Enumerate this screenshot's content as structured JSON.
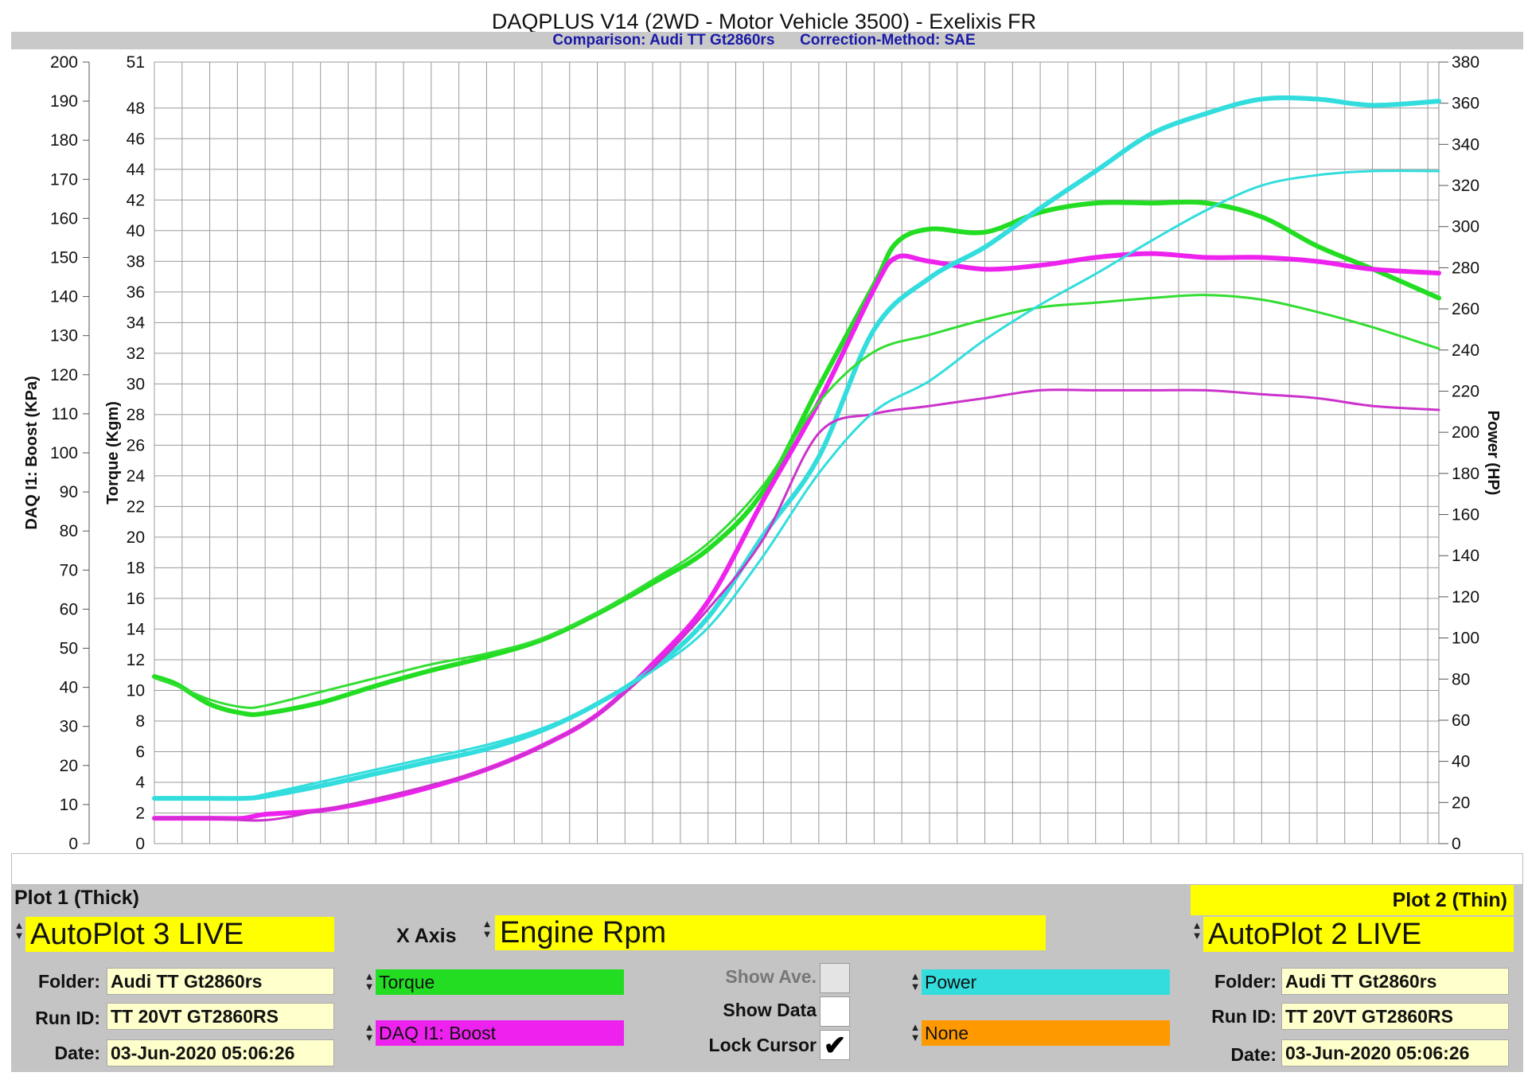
{
  "chart_data": {
    "type": "line",
    "title": "DAQPLUS V14 (2WD - Motor Vehicle 3500) - Exelixis FR",
    "subtitle": "Comparison: Audi TT Gt2860rs      Correction-Method: SAE",
    "xlim": [
      1500,
      7300
    ],
    "x_ticks": [
      1500,
      1750,
      2000,
      2250,
      2500,
      2750,
      3000,
      3250,
      3500,
      3750,
      4000,
      4250,
      4500,
      4750,
      5000,
      5250,
      5500,
      5750,
      6000,
      6250,
      6500,
      6750,
      7000,
      7300
    ],
    "y_axes": {
      "boost": {
        "label": "DAQ I1: Boost (KPa)",
        "range": [
          0,
          200
        ],
        "ticks": [
          0,
          10,
          20,
          30,
          40,
          50,
          60,
          70,
          80,
          90,
          100,
          110,
          120,
          130,
          140,
          150,
          160,
          170,
          180,
          190,
          200
        ]
      },
      "torque": {
        "label": "Torque (Kgm)",
        "range": [
          0,
          51
        ],
        "ticks": [
          0,
          2,
          4,
          6,
          8,
          10,
          12,
          14,
          16,
          18,
          20,
          22,
          24,
          26,
          28,
          30,
          32,
          34,
          36,
          38,
          40,
          42,
          44,
          46,
          48,
          51
        ]
      },
      "power": {
        "label": "Power (HP)",
        "range": [
          0,
          380
        ],
        "ticks": [
          0,
          20,
          40,
          60,
          80,
          100,
          120,
          140,
          160,
          180,
          200,
          220,
          240,
          260,
          280,
          300,
          320,
          340,
          360,
          380
        ]
      }
    },
    "grid": true,
    "series": [
      {
        "name": "Torque",
        "plot": "Plot 1 (Thick)",
        "axis": "torque",
        "color": "#22dd22",
        "width": 6,
        "x": [
          1500,
          1600,
          1750,
          1900,
          2000,
          2250,
          2500,
          2750,
          3000,
          3250,
          3500,
          3750,
          4000,
          4250,
          4500,
          4750,
          4850,
          5000,
          5250,
          5500,
          5750,
          6000,
          6250,
          6500,
          6750,
          7000,
          7300
        ],
        "y": [
          10.9,
          10.4,
          9.1,
          8.5,
          8.5,
          9.2,
          10.3,
          11.3,
          12.2,
          13.3,
          15.0,
          17.0,
          19.2,
          23.0,
          29.8,
          36.5,
          39.2,
          40.1,
          39.9,
          41.2,
          41.8,
          41.8,
          41.8,
          40.9,
          39.0,
          37.5,
          35.6
        ]
      },
      {
        "name": "DAQ I1: Boost",
        "plot": "Plot 1 (Thick)",
        "axis": "boost",
        "color": "#ee22ee",
        "width": 6,
        "x": [
          1500,
          1750,
          1900,
          2000,
          2250,
          2500,
          2750,
          3000,
          3250,
          3500,
          3750,
          4000,
          4250,
          4500,
          4750,
          4850,
          5000,
          5250,
          5500,
          5750,
          6000,
          6250,
          6500,
          6750,
          7000,
          7300
        ],
        "y": [
          6.5,
          6.5,
          6.5,
          7.5,
          8.5,
          11,
          14.5,
          19,
          25,
          33,
          46,
          62,
          88,
          113,
          142,
          150,
          149,
          147,
          148,
          150,
          151,
          150,
          150,
          149,
          147,
          146
        ]
      },
      {
        "name": "Power",
        "plot": "Plot 1 (Thick)",
        "axis": "power",
        "color": "#33dddd",
        "width": 6,
        "x": [
          1500,
          1750,
          1900,
          2000,
          2250,
          2500,
          2750,
          3000,
          3250,
          3500,
          3750,
          4000,
          4250,
          4500,
          4750,
          5000,
          5250,
          5500,
          5750,
          6000,
          6250,
          6500,
          6750,
          7000,
          7300
        ],
        "y": [
          22,
          22,
          22,
          23,
          28,
          34,
          40,
          46,
          55,
          68,
          85,
          110,
          150,
          188,
          250,
          275,
          290,
          309,
          327,
          345,
          355,
          362,
          362,
          359,
          361
        ]
      },
      {
        "name": "Torque",
        "plot": "Plot 2 (Thin)",
        "axis": "torque",
        "color": "#33dd33",
        "width": 3,
        "x": [
          1500,
          1600,
          1750,
          1900,
          2000,
          2250,
          2500,
          2750,
          3000,
          3250,
          3500,
          3750,
          4000,
          4250,
          4500,
          4750,
          5000,
          5250,
          5500,
          5750,
          6000,
          6250,
          6500,
          6750,
          7000,
          7300
        ],
        "y": [
          10.8,
          10.3,
          9.4,
          8.9,
          9.0,
          9.9,
          10.8,
          11.7,
          12.4,
          13.4,
          15.1,
          17.2,
          19.6,
          23.4,
          28.8,
          32.1,
          33.2,
          34.2,
          35.0,
          35.3,
          35.6,
          35.8,
          35.5,
          34.7,
          33.7,
          32.3
        ]
      },
      {
        "name": "DAQ I1: Boost",
        "plot": "Plot 2 (Thin)",
        "axis": "boost",
        "color": "#cc33cc",
        "width": 3,
        "x": [
          1500,
          1750,
          2000,
          2250,
          2500,
          2750,
          3000,
          3250,
          3500,
          3750,
          4000,
          4250,
          4500,
          4750,
          5000,
          5250,
          5500,
          5750,
          6000,
          6250,
          6500,
          6750,
          7000,
          7300
        ],
        "y": [
          6.5,
          6.5,
          6,
          8.5,
          11.5,
          15,
          19,
          25,
          33,
          45,
          60,
          78,
          105,
          110,
          112,
          114,
          116,
          116,
          116,
          116,
          115,
          114,
          112,
          111
        ]
      },
      {
        "name": "Power",
        "plot": "Plot 2 (Thin)",
        "axis": "power",
        "color": "#33dddd",
        "width": 3,
        "x": [
          1500,
          1750,
          1900,
          2000,
          2250,
          2500,
          2750,
          3000,
          3250,
          3500,
          3750,
          4000,
          4250,
          4500,
          4750,
          5000,
          5250,
          5500,
          5750,
          6000,
          6250,
          6500,
          6750,
          7000,
          7300
        ],
        "y": [
          22,
          22,
          22,
          24,
          30,
          36,
          42,
          48,
          56,
          68,
          84,
          105,
          140,
          180,
          210,
          225,
          245,
          262,
          277,
          293,
          308,
          320,
          325,
          327,
          327
        ]
      }
    ]
  },
  "panel": {
    "plot1_label": "Plot 1 (Thick)",
    "plot2_label": "Plot 2 (Thin)",
    "plot1_source": "AutoPlot 3 LIVE",
    "plot2_source": "AutoPlot 2 LIVE",
    "xaxis_label": "X Axis",
    "xaxis_value": "Engine Rpm",
    "folder_label": "Folder:",
    "runid_label": "Run ID:",
    "date_label": "Date:",
    "plot1_folder": "Audi TT Gt2860rs",
    "plot1_runid": "TT 20VT GT2860RS",
    "plot1_date": "03-Jun-2020 05:06:26",
    "plot2_folder": "Audi TT Gt2860rs",
    "plot2_runid": "TT 20VT GT2860RS",
    "plot2_date": "03-Jun-2020 05:06:26",
    "channel1": "Torque",
    "channel2": "DAQ I1: Boost",
    "channel3": "Power",
    "channel4": "None",
    "channel1_color": "#22dd22",
    "channel2_color": "#ee22ee",
    "channel3_color": "#33dddd",
    "channel4_color": "#ff9900",
    "show_ave_label": "Show Ave.",
    "show_data_label": "Show Data",
    "lock_cursor_label": "Lock Cursor",
    "show_ave_checked": false,
    "show_data_checked": false,
    "lock_cursor_checked": true,
    "spin_up": "▲",
    "spin_down": "▼",
    "check_mark": "✔"
  }
}
